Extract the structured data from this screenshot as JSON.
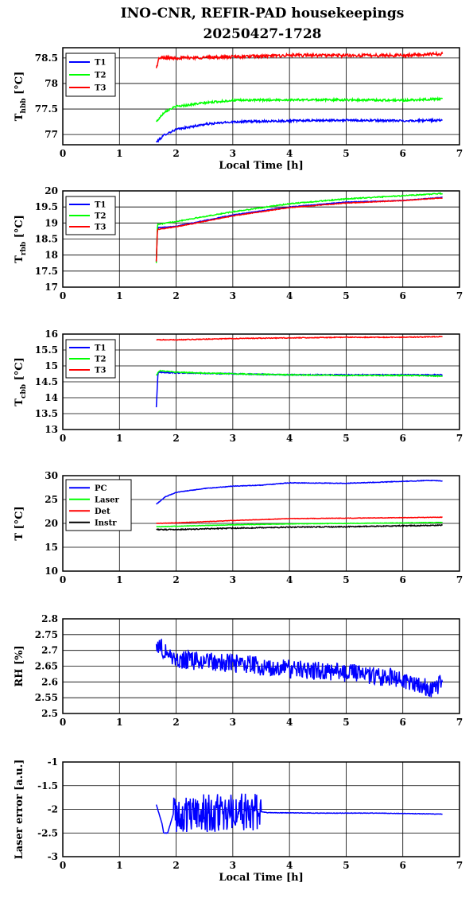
{
  "title_lines": [
    "INO-CNR, REFIR-PAD housekeepings",
    "20250427-1728"
  ],
  "chart_data": [
    {
      "type": "line",
      "ylabel": {
        "main": "T",
        "sub": "hbb",
        "unit": " [°C]"
      },
      "xlabel": "Local Time [h]",
      "xlim": [
        0,
        7
      ],
      "ylim": [
        76.8,
        78.7
      ],
      "xticks": [
        0,
        1,
        2,
        3,
        4,
        5,
        6,
        7
      ],
      "yticks": [
        77,
        77.5,
        78,
        78.5
      ],
      "ytick_labels": [
        "77",
        "77.5",
        "78",
        "78.5"
      ],
      "grid": true,
      "legend_position": "top-left",
      "series": [
        {
          "name": "T1",
          "color": "#0000ff",
          "noise": 0.02,
          "points": [
            [
              1.65,
              76.85
            ],
            [
              1.8,
              77.0
            ],
            [
              2.0,
              77.1
            ],
            [
              2.5,
              77.2
            ],
            [
              3.0,
              77.25
            ],
            [
              4.0,
              77.27
            ],
            [
              5.0,
              77.28
            ],
            [
              6.0,
              77.27
            ],
            [
              6.7,
              77.28
            ]
          ]
        },
        {
          "name": "T2",
          "color": "#00ff00",
          "noise": 0.02,
          "points": [
            [
              1.65,
              77.25
            ],
            [
              1.8,
              77.45
            ],
            [
              2.0,
              77.55
            ],
            [
              2.5,
              77.62
            ],
            [
              3.0,
              77.67
            ],
            [
              4.0,
              77.68
            ],
            [
              5.0,
              77.68
            ],
            [
              6.0,
              77.67
            ],
            [
              6.7,
              77.7
            ]
          ]
        },
        {
          "name": "T3",
          "color": "#ff0000",
          "noise": 0.03,
          "points": [
            [
              1.65,
              78.3
            ],
            [
              1.7,
              78.5
            ],
            [
              2.0,
              78.5
            ],
            [
              3.0,
              78.52
            ],
            [
              4.0,
              78.55
            ],
            [
              5.0,
              78.55
            ],
            [
              6.0,
              78.55
            ],
            [
              6.7,
              78.58
            ]
          ]
        }
      ]
    },
    {
      "type": "line",
      "ylabel": {
        "main": "T",
        "sub": "rbb",
        "unit": " [°C]"
      },
      "xlabel": "",
      "xlim": [
        0,
        7
      ],
      "ylim": [
        17,
        20
      ],
      "xticks": [
        0,
        1,
        2,
        3,
        4,
        5,
        6,
        7
      ],
      "yticks": [
        17,
        17.5,
        18,
        18.5,
        19,
        19.5,
        20
      ],
      "ytick_labels": [
        "17",
        "17.5",
        "18",
        "18.5",
        "19",
        "19.5",
        "20"
      ],
      "grid": true,
      "legend_position": "top-left",
      "series": [
        {
          "name": "T1",
          "color": "#0000ff",
          "noise": 0.01,
          "points": [
            [
              1.65,
              17.8
            ],
            [
              1.67,
              18.85
            ],
            [
              2.0,
              18.9
            ],
            [
              3.0,
              19.25
            ],
            [
              4.0,
              19.5
            ],
            [
              5.0,
              19.65
            ],
            [
              6.0,
              19.7
            ],
            [
              6.7,
              19.8
            ]
          ]
        },
        {
          "name": "T2",
          "color": "#00ff00",
          "noise": 0.015,
          "points": [
            [
              1.65,
              17.75
            ],
            [
              1.67,
              18.95
            ],
            [
              2.0,
              19.05
            ],
            [
              3.0,
              19.35
            ],
            [
              4.0,
              19.6
            ],
            [
              5.0,
              19.75
            ],
            [
              6.0,
              19.85
            ],
            [
              6.7,
              19.92
            ]
          ]
        },
        {
          "name": "T3",
          "color": "#ff0000",
          "noise": 0.01,
          "points": [
            [
              1.65,
              17.8
            ],
            [
              1.67,
              18.8
            ],
            [
              2.0,
              18.88
            ],
            [
              3.0,
              19.22
            ],
            [
              4.0,
              19.48
            ],
            [
              5.0,
              19.62
            ],
            [
              6.0,
              19.7
            ],
            [
              6.7,
              19.78
            ]
          ]
        }
      ]
    },
    {
      "type": "line",
      "ylabel": {
        "main": "T",
        "sub": "cbb",
        "unit": " [°C]"
      },
      "xlabel": "",
      "xlim": [
        0,
        7
      ],
      "ylim": [
        13,
        16
      ],
      "xticks": [
        0,
        1,
        2,
        3,
        4,
        5,
        6,
        7
      ],
      "yticks": [
        13,
        13.5,
        14,
        14.5,
        15,
        15.5,
        16
      ],
      "ytick_labels": [
        "13",
        "13.5",
        "14",
        "14.5",
        "15",
        "15.5",
        "16"
      ],
      "grid": true,
      "legend_position": "top-left",
      "series": [
        {
          "name": "T1",
          "color": "#0000ff",
          "noise": 0.015,
          "points": [
            [
              1.65,
              13.7
            ],
            [
              1.68,
              14.8
            ],
            [
              2.0,
              14.78
            ],
            [
              3.0,
              14.75
            ],
            [
              4.0,
              14.72
            ],
            [
              5.0,
              14.72
            ],
            [
              6.0,
              14.72
            ],
            [
              6.7,
              14.72
            ]
          ]
        },
        {
          "name": "T2",
          "color": "#00ff00",
          "noise": 0.015,
          "points": [
            [
              1.65,
              14.7
            ],
            [
              1.7,
              14.85
            ],
            [
              2.0,
              14.8
            ],
            [
              3.0,
              14.75
            ],
            [
              4.0,
              14.72
            ],
            [
              5.0,
              14.7
            ],
            [
              6.0,
              14.7
            ],
            [
              6.7,
              14.68
            ]
          ]
        },
        {
          "name": "T3",
          "color": "#ff0000",
          "noise": 0.012,
          "points": [
            [
              1.65,
              15.82
            ],
            [
              2.0,
              15.82
            ],
            [
              3.0,
              15.86
            ],
            [
              4.0,
              15.88
            ],
            [
              5.0,
              15.9
            ],
            [
              6.0,
              15.9
            ],
            [
              6.7,
              15.92
            ]
          ]
        }
      ]
    },
    {
      "type": "line",
      "ylabel": {
        "main": "T [°C]",
        "sub": "",
        "unit": ""
      },
      "xlabel": "",
      "xlim": [
        0,
        7
      ],
      "ylim": [
        10,
        30
      ],
      "xticks": [
        0,
        1,
        2,
        3,
        4,
        5,
        6,
        7
      ],
      "yticks": [
        10,
        15,
        20,
        25,
        30
      ],
      "ytick_labels": [
        "10",
        "15",
        "20",
        "25",
        "30"
      ],
      "grid": true,
      "legend_position": "top-left",
      "series": [
        {
          "name": "PC",
          "color": "#0000ff",
          "noise": 0.06,
          "points": [
            [
              1.65,
              24.0
            ],
            [
              1.8,
              25.5
            ],
            [
              2.0,
              26.5
            ],
            [
              2.5,
              27.3
            ],
            [
              3.0,
              27.8
            ],
            [
              3.5,
              28.0
            ],
            [
              4.0,
              28.5
            ],
            [
              5.0,
              28.4
            ],
            [
              6.0,
              28.8
            ],
            [
              6.5,
              29.0
            ],
            [
              6.7,
              28.9
            ]
          ]
        },
        {
          "name": "Laser",
          "color": "#00ff00",
          "noise": 0.05,
          "points": [
            [
              1.65,
              19.3
            ],
            [
              2.0,
              19.4
            ],
            [
              3.0,
              19.7
            ],
            [
              4.0,
              19.9
            ],
            [
              5.0,
              20.0
            ],
            [
              6.0,
              20.1
            ],
            [
              6.7,
              20.2
            ]
          ]
        },
        {
          "name": "Det",
          "color": "#ff0000",
          "noise": 0.05,
          "points": [
            [
              1.65,
              20.0
            ],
            [
              2.0,
              20.1
            ],
            [
              3.0,
              20.6
            ],
            [
              4.0,
              21.0
            ],
            [
              5.0,
              21.1
            ],
            [
              6.0,
              21.2
            ],
            [
              6.7,
              21.3
            ]
          ]
        },
        {
          "name": "Instr",
          "color": "#000000",
          "noise": 0.1,
          "points": [
            [
              1.65,
              18.7
            ],
            [
              2.0,
              18.7
            ],
            [
              3.0,
              19.0
            ],
            [
              4.0,
              19.2
            ],
            [
              5.0,
              19.3
            ],
            [
              6.0,
              19.5
            ],
            [
              6.7,
              19.6
            ]
          ]
        }
      ]
    },
    {
      "type": "line",
      "ylabel": {
        "main": "RH [%]",
        "sub": "",
        "unit": ""
      },
      "xlabel": "",
      "xlim": [
        0,
        7
      ],
      "ylim": [
        2.5,
        2.8
      ],
      "xticks": [
        0,
        1,
        2,
        3,
        4,
        5,
        6,
        7
      ],
      "yticks": [
        2.5,
        2.55,
        2.6,
        2.65,
        2.7,
        2.75,
        2.8
      ],
      "ytick_labels": [
        "2.5",
        "2.55",
        "2.6",
        "2.65",
        "2.7",
        "2.75",
        "2.8"
      ],
      "grid": true,
      "legend_position": "none",
      "series": [
        {
          "name": "",
          "color": "#0000ff",
          "noise": 0.03,
          "points": [
            [
              1.65,
              2.72
            ],
            [
              2.0,
              2.67
            ],
            [
              3.0,
              2.66
            ],
            [
              4.0,
              2.64
            ],
            [
              5.0,
              2.63
            ],
            [
              6.0,
              2.61
            ],
            [
              6.5,
              2.58
            ],
            [
              6.7,
              2.6
            ]
          ]
        }
      ]
    },
    {
      "type": "line",
      "ylabel": {
        "main": "Laser error [a.u.]",
        "sub": "",
        "unit": ""
      },
      "xlabel": "Local Time [h]",
      "xlim": [
        0,
        7
      ],
      "ylim": [
        -3,
        -1
      ],
      "xticks": [
        0,
        1,
        2,
        3,
        4,
        5,
        6,
        7
      ],
      "yticks": [
        -3,
        -2.5,
        -2,
        -1.5,
        -1
      ],
      "ytick_labels": [
        "-3",
        "-2.5",
        "-2",
        "-1.5",
        "-1"
      ],
      "grid": true,
      "legend_position": "none",
      "series": [
        {
          "name": "",
          "color": "#0000ff",
          "noise": 0.005,
          "noisy_segment": {
            "from": 1.95,
            "to": 3.5,
            "amplitude": 0.4
          },
          "points": [
            [
              1.65,
              -1.9
            ],
            [
              1.75,
              -2.3
            ],
            [
              1.78,
              -2.5
            ],
            [
              1.85,
              -2.5
            ],
            [
              1.9,
              -2.3
            ],
            [
              1.95,
              -2.1
            ],
            [
              3.5,
              -2.05
            ],
            [
              3.6,
              -2.07
            ],
            [
              4.5,
              -2.08
            ],
            [
              5.5,
              -2.08
            ],
            [
              6.7,
              -2.1
            ]
          ]
        }
      ]
    }
  ]
}
